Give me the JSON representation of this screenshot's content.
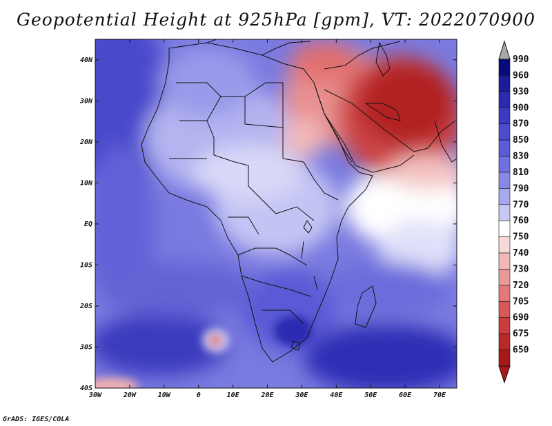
{
  "title": "Geopotential Height at 925hPa [gpm], VT: 2022070900",
  "credit": "GrADS: IGES/COLA",
  "map": {
    "lon_range": [
      -30,
      75
    ],
    "lat_range": [
      -40,
      45
    ],
    "lon_ticks": [
      "30W",
      "20W",
      "10W",
      "0",
      "10E",
      "20E",
      "30E",
      "40E",
      "50E",
      "60E",
      "70E"
    ],
    "lat_ticks": [
      "40N",
      "30N",
      "20N",
      "10N",
      "EQ",
      "10S",
      "20S",
      "30S",
      "40S"
    ]
  },
  "colorbar": {
    "levels": [
      "990",
      "960",
      "930",
      "900",
      "870",
      "850",
      "830",
      "810",
      "790",
      "770",
      "760",
      "750",
      "740",
      "730",
      "720",
      "705",
      "690",
      "675",
      "650"
    ],
    "colors": [
      "#0a0a80",
      "#1c1c9a",
      "#2a2ab0",
      "#3a3ac4",
      "#4c4cd0",
      "#5c5cd8",
      "#7070e0",
      "#8888e6",
      "#a8a8ee",
      "#c8c8f4",
      "#ffffff",
      "#f8d8d8",
      "#f2b8b8",
      "#ea9898",
      "#e27878",
      "#d85858",
      "#cc3c3c",
      "#bb2828",
      "#a81818"
    ],
    "over_color": "#a9a9a9",
    "under_color": "#a81818"
  }
}
